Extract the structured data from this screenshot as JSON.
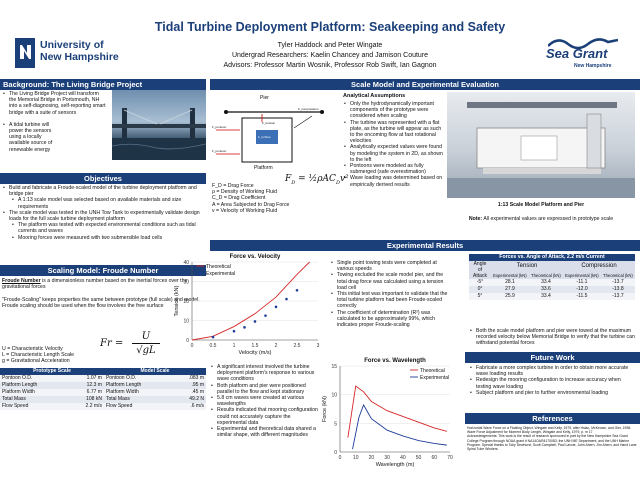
{
  "header": {
    "title": "Tidal Turbine Deployment Platform: Seakeeping and Safety",
    "authors": "Tyler Haddock and Peter Wingate",
    "undergrad": "Undergrad Researchers: Kaelin Chancey and Jamison Couture",
    "advisors": "Advisors: Professor Martin Wosnik, Professor Rob Swift, Ian Gagnon",
    "unh_logo_l1": "University of",
    "unh_logo_l2": "New Hampshire",
    "seagrant_l1": "Sea Grant",
    "seagrant_l2": "New Hampshire"
  },
  "background": {
    "title": "Background: The Living Bridge Project",
    "items": [
      "The Living Bridge Project will transform the Memorial Bridge in Portsmouth, NH into a self-diagnosing, self-reporting smart bridge with a suite of sensors",
      "A tidal turbine will power the sensors using a locally available source of renewable energy"
    ]
  },
  "objectives": {
    "title": "Objectives",
    "items": [
      "Build and fabricate a Froude-scaled model of the turbine deployment platform and bridge pier",
      "The scale model was tested in the UNH Tow Tank to experimentally validate design loads for the full scale turbine deployment platform"
    ],
    "sub_a": "A 1:13 scale model was selected based on available materials and size requirements",
    "sub_b1": "The platform was tested with expected environmental conditions such as tidal currents and waves",
    "sub_b2": "Mooring forces were measured with two submersible load cells"
  },
  "froude": {
    "title": "Scaling Model: Froude Number",
    "p1_strong": "Froude Number",
    "p1_rest": " is a dimensionless number based on the inertial forces over the gravitational forces",
    "p2": "\"Froude-Scaling\" keeps properties the same between prototype (full scale) and model. Froude scaling should be used when the flow involves the free surface",
    "defs": [
      "U = Characteristic Velocity",
      "L = Characteristic Length Scale",
      "g = Gravitational Acceleration"
    ],
    "table_headers": [
      "Prototype Scale",
      "Model Scale"
    ],
    "rows": [
      [
        "Pontoon O.D.",
        "1.07 m",
        "Pontoon O.D.",
        ".083 m"
      ],
      [
        "Platform Length",
        "12.3 m",
        "Platform Length",
        ".95 m"
      ],
      [
        "Platform Width",
        "6.77 m",
        "Platform Width",
        ".45 m"
      ],
      [
        "Total Mass",
        "108 kN",
        "Total Mass",
        "49.2 N"
      ],
      [
        "Flow Speed",
        "2.2 m/s",
        "Flow Speed",
        ".6 m/s"
      ]
    ]
  },
  "scale": {
    "title": "Scale Model and Experimental Evaluation",
    "diagram": {
      "pier": "Pier",
      "platform": "Platform"
    },
    "legend": [
      "F_D = Drag Force",
      "ρ = Density of Working Fluid",
      "C_D = Drag Coefficient",
      "A = Area Subjected to Drag Force",
      "v = Velocity of Working Fluid"
    ],
    "assumptions_title": "Analytical Assumptions",
    "assumptions": [
      "Only the hydrodynamically important components of the prototype were considered when scaling",
      "The turbine was represented with a flat plate, as the turbine will appear as such to the oncoming flow at fast rotational velocities",
      "Analytically expected values were found by modeling the system in 2D, as shown to the left",
      "Pontoons were modeled as fully submerged (safe overestimation)",
      "Wave loading was determined based on empirically derived results"
    ],
    "photo_caption": "1:13 Scale Model Platform and Pier",
    "note_strong": "Note:",
    "note_rest": " All experimental values are expressed in prototype scale"
  },
  "results": {
    "title": "Experimental Results",
    "bullets1": [
      "Single point towing tests were completed at various speeds",
      "Towing excluded the scale model pier, and the total drag force was calculated using a tension load cell",
      "This initial test was important to validate that the total turbine platform had been Froude-scaled correctly",
      "The coefficient of determination (R²) was calculated to be approximately 99%, which indicates proper Froude-scaling"
    ],
    "bullets2": [
      "A significant interest involved the turbine deployment platform's response to various wave conditions",
      "Both platform and pier were positioned parallel to the flow and kept stationary",
      "5.8 cm waves were created at various wavelengths",
      "Results indicated that mooring configuration could not accurately capture the experimental data",
      "Experimental and theoretical data shared a similar shape, with different magnitudes"
    ]
  },
  "forces": {
    "title": "Forces vs. Angle of Attack, 2.2 m/s Current",
    "col1": "Angle of Attack",
    "tension": "Tension",
    "compression": "Compression",
    "sub": [
      "Experimental (kN)",
      "Theoretical (kN)",
      "Experimental (kN)",
      "Theoretical (kN)"
    ],
    "rows": [
      [
        "-5°",
        "28.1",
        "33.4",
        "-11.1",
        "-13.7"
      ],
      [
        "0°",
        "27.9",
        "33.6",
        "-12.0",
        "-13.8"
      ],
      [
        "5°",
        "25.9",
        "33.4",
        "-11.5",
        "-13.7"
      ]
    ],
    "bullet": "Both the scale model platform and pier were towed at the maximum recorded velocity below Memorial Bridge to verify that the turbine can withstand potential forces"
  },
  "future": {
    "title": "Future Work",
    "items": [
      "Fabricate a more complex turbine in order to obtain more accurate wave loading results",
      "Redesign the mooring configuration to increase accuracy when testing wave loading",
      "Subject platform and pier to further environmental loading"
    ]
  },
  "references": {
    "title": "References",
    "lines": [
      "Horizontal Wave Force on a Floating Object, Wingate and Kelly, 1979, after Hsiao, McKeown, and Gier, 1958.",
      "Wave Force Adjustment for Moment Body Length, Wingate and Kelly, 1979, p. m 17",
      "Acknowledgements: This work is the result of research sponsored in part by the New Hampshire Sea Grant College Program through NOAA grant # NA14OAR4170083, the UNH ME Department, and the UNH Marine Program. Special thanks to Toby Dewhurst, Scott Campbell, Paul Lavoie, John Ahern, Jim Ahern, and Hand Lane Spiral Tube Winders."
    ]
  },
  "chart_data": [
    {
      "type": "scatter",
      "title": "Force vs. Velocity",
      "xlabel": "Velocity (m/s)",
      "ylabel": "Tension (kN)",
      "xlim": [
        0,
        3
      ],
      "ylim": [
        0,
        40
      ],
      "xticks": [
        "0",
        "0.5",
        "1",
        "1.5",
        "2",
        "2.5",
        "3"
      ],
      "yticks": [
        "0",
        "10",
        "20",
        "30",
        "40"
      ],
      "legend_position": "top-left",
      "series": [
        {
          "name": "Theoretical",
          "color": "#d62728",
          "style": "line",
          "x": [
            0,
            0.5,
            1.0,
            1.5,
            2.0,
            2.5,
            2.8
          ],
          "y": [
            0,
            1.9,
            6.9,
            13.5,
            22.0,
            33.6,
            40
          ]
        },
        {
          "name": "Experimental",
          "color": "#1f3d99",
          "style": "points",
          "x": [
            0.5,
            1.0,
            1.25,
            1.5,
            1.75,
            2.0,
            2.25,
            2.5
          ],
          "y": [
            1.5,
            4.5,
            6.5,
            9.5,
            12.5,
            17.0,
            21.0,
            25.5
          ]
        }
      ]
    },
    {
      "type": "line",
      "title": "Force vs. Wavelength",
      "xlabel": "Wavelength (m)",
      "ylabel": "Force (kN)",
      "xlim": [
        0,
        70
      ],
      "ylim": [
        0,
        15
      ],
      "xticks": [
        "0",
        "10",
        "20",
        "30",
        "40",
        "50",
        "60",
        "70"
      ],
      "yticks": [
        "0",
        "5",
        "10",
        "15"
      ],
      "legend_position": "top-right",
      "series": [
        {
          "name": "Theoretical",
          "color": "#d62728",
          "x": [
            5,
            10,
            15,
            20,
            30,
            40,
            50,
            60,
            68
          ],
          "y": [
            2.5,
            11.5,
            10.5,
            8.8,
            7.2,
            6.2,
            5.2,
            4.2,
            3.6
          ]
        },
        {
          "name": "Experimental",
          "color": "#1f3d99",
          "x": [
            8,
            12,
            15,
            20,
            30,
            40,
            50,
            60,
            68
          ],
          "y": [
            0.5,
            6.0,
            8.2,
            5.8,
            3.8,
            2.8,
            2.0,
            1.5,
            1.2
          ]
        }
      ]
    }
  ]
}
